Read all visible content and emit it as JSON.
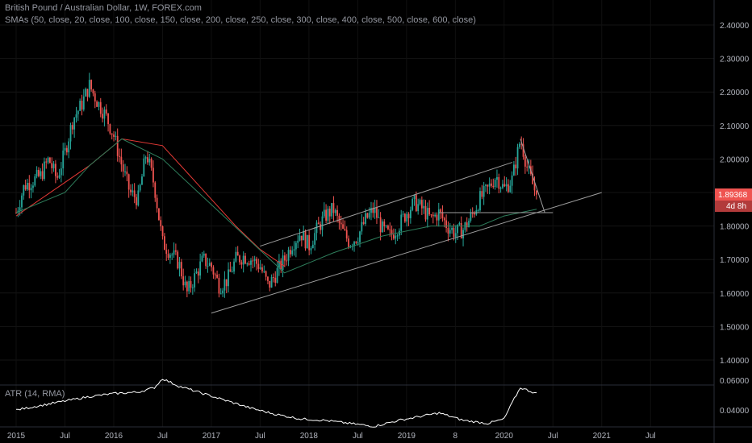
{
  "header": {
    "title": "British Pound / Australian Dollar, 1W, FOREX.com",
    "studies": "SMAs (50, close, 20, close, 100, close, 150, close, 200, close, 250, close, 300, close, 400, close, 500, close, 600, close)"
  },
  "atr_legend": "ATR (14, RMA)",
  "price_badge": {
    "value": "1.89368",
    "countdown": "4d 8h"
  },
  "colors": {
    "background": "#000000",
    "candle_up": "#26a69a",
    "candle_down": "#ef5350",
    "sma_red": "#e53935",
    "sma_green": "#2e7d5b",
    "trendline": "#9e9e9e",
    "atr": "#ffffff",
    "badge": "#ef5350"
  },
  "chart_data": [
    {
      "type": "candlestick",
      "title": "British Pound / Australian Dollar, 1W, FOREX.com",
      "x_axis": {
        "tick_labels": [
          "2015",
          "Jul",
          "2016",
          "Jul",
          "2017",
          "Jul",
          "2018",
          "Jul",
          "2019",
          "8",
          "2020",
          "Jul",
          "2021",
          "Jul"
        ]
      },
      "y_axis": {
        "tick_labels": [
          "1.40000",
          "1.50000",
          "1.60000",
          "1.70000",
          "1.80000",
          "1.90000",
          "2.00000",
          "2.10000",
          "2.20000",
          "2.30000",
          "2.40000"
        ],
        "ylim": [
          1.34,
          2.47
        ]
      },
      "last_price": 1.89368,
      "close_path": [
        [
          "2015-01",
          1.84
        ],
        [
          "2015-02",
          1.92
        ],
        [
          "2015-04",
          1.95
        ],
        [
          "2015-05",
          2.0
        ],
        [
          "2015-06",
          1.94
        ],
        [
          "2015-07",
          2.02
        ],
        [
          "2015-08",
          2.12
        ],
        [
          "2015-09",
          2.16
        ],
        [
          "2015-10",
          2.22
        ],
        [
          "2015-11",
          2.17
        ],
        [
          "2015-12",
          2.13
        ],
        [
          "2016-01",
          2.07
        ],
        [
          "2016-02",
          1.98
        ],
        [
          "2016-03",
          1.9
        ],
        [
          "2016-04",
          1.88
        ],
        [
          "2016-05",
          2.02
        ],
        [
          "2016-06",
          1.92
        ],
        [
          "2016-07",
          1.75
        ],
        [
          "2016-08",
          1.72
        ],
        [
          "2016-09",
          1.69
        ],
        [
          "2016-10",
          1.6
        ],
        [
          "2016-11",
          1.65
        ],
        [
          "2016-12",
          1.7
        ],
        [
          "2017-01",
          1.68
        ],
        [
          "2017-02",
          1.62
        ],
        [
          "2017-03",
          1.64
        ],
        [
          "2017-04",
          1.7
        ],
        [
          "2017-05",
          1.71
        ],
        [
          "2017-06",
          1.7
        ],
        [
          "2017-07",
          1.68
        ],
        [
          "2017-08",
          1.62
        ],
        [
          "2017-09",
          1.66
        ],
        [
          "2017-10",
          1.7
        ],
        [
          "2017-11",
          1.75
        ],
        [
          "2017-12",
          1.78
        ],
        [
          "2018-01",
          1.74
        ],
        [
          "2018-02",
          1.79
        ],
        [
          "2018-03",
          1.83
        ],
        [
          "2018-04",
          1.85
        ],
        [
          "2018-05",
          1.79
        ],
        [
          "2018-06",
          1.75
        ],
        [
          "2018-07",
          1.77
        ],
        [
          "2018-08",
          1.82
        ],
        [
          "2018-09",
          1.85
        ],
        [
          "2018-10",
          1.79
        ],
        [
          "2018-11",
          1.77
        ],
        [
          "2018-12",
          1.8
        ],
        [
          "2019-01",
          1.84
        ],
        [
          "2019-02",
          1.87
        ],
        [
          "2019-03",
          1.85
        ],
        [
          "2019-04",
          1.82
        ],
        [
          "2019-05",
          1.84
        ],
        [
          "2019-06",
          1.8
        ],
        [
          "2019-07",
          1.78
        ],
        [
          "2019-08",
          1.79
        ],
        [
          "2019-09",
          1.83
        ],
        [
          "2019-10",
          1.88
        ],
        [
          "2019-11",
          1.91
        ],
        [
          "2019-12",
          1.95
        ],
        [
          "2020-01",
          1.91
        ],
        [
          "2020-02",
          1.94
        ],
        [
          "2020-03",
          2.06
        ],
        [
          "2020-04",
          1.96
        ],
        [
          "2020-05",
          1.89
        ]
      ],
      "series": [
        {
          "values_path": [
            [
              "2015-01",
              1.83
            ],
            [
              "2015-10",
              1.98
            ],
            [
              "2016-02",
              2.06
            ],
            [
              "2016-07",
              2.04
            ],
            [
              "2016-10",
              1.96
            ],
            [
              "2017-01",
              1.88
            ],
            [
              "2017-04",
              1.8
            ],
            [
              "2017-07",
              1.73
            ],
            [
              "2017-10",
              1.68
            ]
          ]
        },
        {
          "values_path": [
            [
              "2015-01",
              1.84
            ],
            [
              "2015-07",
              1.9
            ],
            [
              "2015-10",
              1.98
            ],
            [
              "2016-02",
              2.06
            ],
            [
              "2016-07",
              2.0
            ],
            [
              "2017-10",
              1.66
            ],
            [
              "2018-04",
              1.72
            ],
            [
              "2018-10",
              1.77
            ],
            [
              "2019-04",
              1.8
            ],
            [
              "2019-10",
              1.8
            ],
            [
              "2020-01",
              1.83
            ],
            [
              "2020-05",
              1.85
            ]
          ]
        }
      ],
      "trendlines": [
        {
          "from": [
            "2017-07",
            1.74
          ],
          "to": [
            "2020-02",
            1.99
          ]
        },
        {
          "from": [
            "2017-01",
            1.54
          ],
          "to": [
            "2021-01",
            1.9
          ]
        },
        {
          "from": [
            "2019-05",
            1.84
          ],
          "to": [
            "2020-07",
            1.84
          ]
        },
        {
          "from": [
            "2020-03",
            2.06
          ],
          "to": [
            "2020-06",
            1.84
          ]
        }
      ]
    },
    {
      "type": "line",
      "title": "ATR (14, RMA)",
      "y_axis": {
        "tick_labels": [
          "0.04000",
          "0.06000"
        ],
        "ylim": [
          0.025,
          0.068
        ]
      },
      "path": [
        [
          "2015-01",
          0.04
        ],
        [
          "2015-04",
          0.043
        ],
        [
          "2015-07",
          0.046
        ],
        [
          "2015-10",
          0.049
        ],
        [
          "2016-01",
          0.051
        ],
        [
          "2016-04",
          0.052
        ],
        [
          "2016-06",
          0.055
        ],
        [
          "2016-07",
          0.061
        ],
        [
          "2016-09",
          0.056
        ],
        [
          "2016-12",
          0.051
        ],
        [
          "2017-03",
          0.046
        ],
        [
          "2017-06",
          0.041
        ],
        [
          "2017-09",
          0.037
        ],
        [
          "2017-12",
          0.034
        ],
        [
          "2018-03",
          0.033
        ],
        [
          "2018-06",
          0.031
        ],
        [
          "2018-09",
          0.029
        ],
        [
          "2018-12",
          0.033
        ],
        [
          "2019-03",
          0.036
        ],
        [
          "2019-05",
          0.038
        ],
        [
          "2019-08",
          0.033
        ],
        [
          "2019-11",
          0.031
        ],
        [
          "2020-01",
          0.034
        ],
        [
          "2020-02",
          0.045
        ],
        [
          "2020-03",
          0.055
        ],
        [
          "2020-05",
          0.051
        ]
      ]
    }
  ]
}
